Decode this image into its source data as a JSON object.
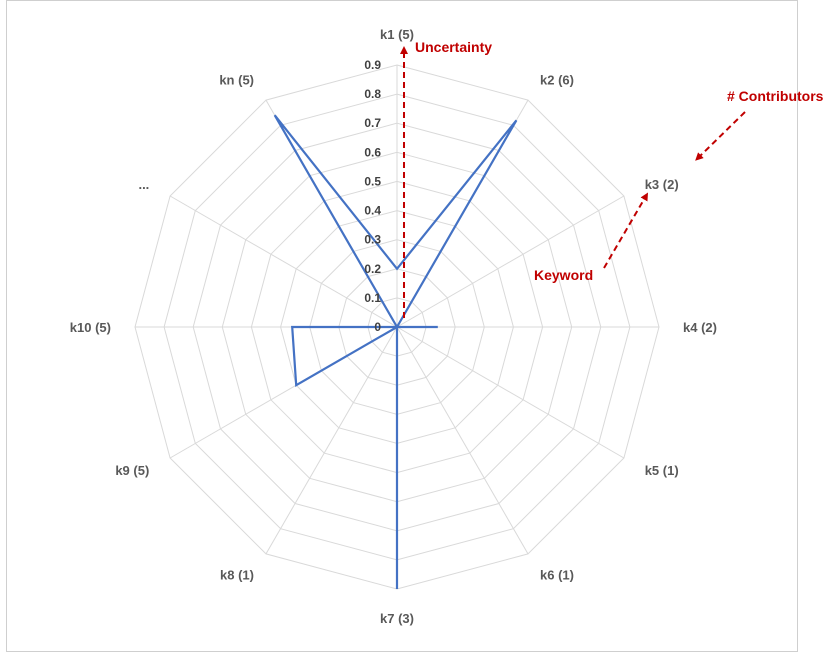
{
  "chart_data": {
    "type": "radar",
    "categories": [
      "k1 (5)",
      "k2 (6)",
      "k3 (2)",
      "k4 (2)",
      "k5 (1)",
      "k6 (1)",
      "k7 (3)",
      "k8 (1)",
      "k9 (5)",
      "k10 (5)",
      "...",
      "kn (5)"
    ],
    "series": [
      {
        "values": [
          0.2,
          0.82,
          0.0,
          0.14,
          0.0,
          0.0,
          0.9,
          0.0,
          0.4,
          0.36,
          0.0,
          0.84
        ]
      }
    ],
    "rlim": [
      0,
      0.9
    ],
    "ticks": [
      "0",
      "0.1",
      "0.2",
      "0.3",
      "0.4",
      "0.5",
      "0.6",
      "0.7",
      "0.8",
      "0.9"
    ],
    "grid": true,
    "annotations": {
      "uncertainty": "Uncertainty",
      "contributors": "# Contributors",
      "keyword": "Keyword"
    },
    "colors": {
      "series": "#4472C4",
      "annotation": "#C00000",
      "grid": "#d9d9d9",
      "label": "#595959"
    }
  }
}
